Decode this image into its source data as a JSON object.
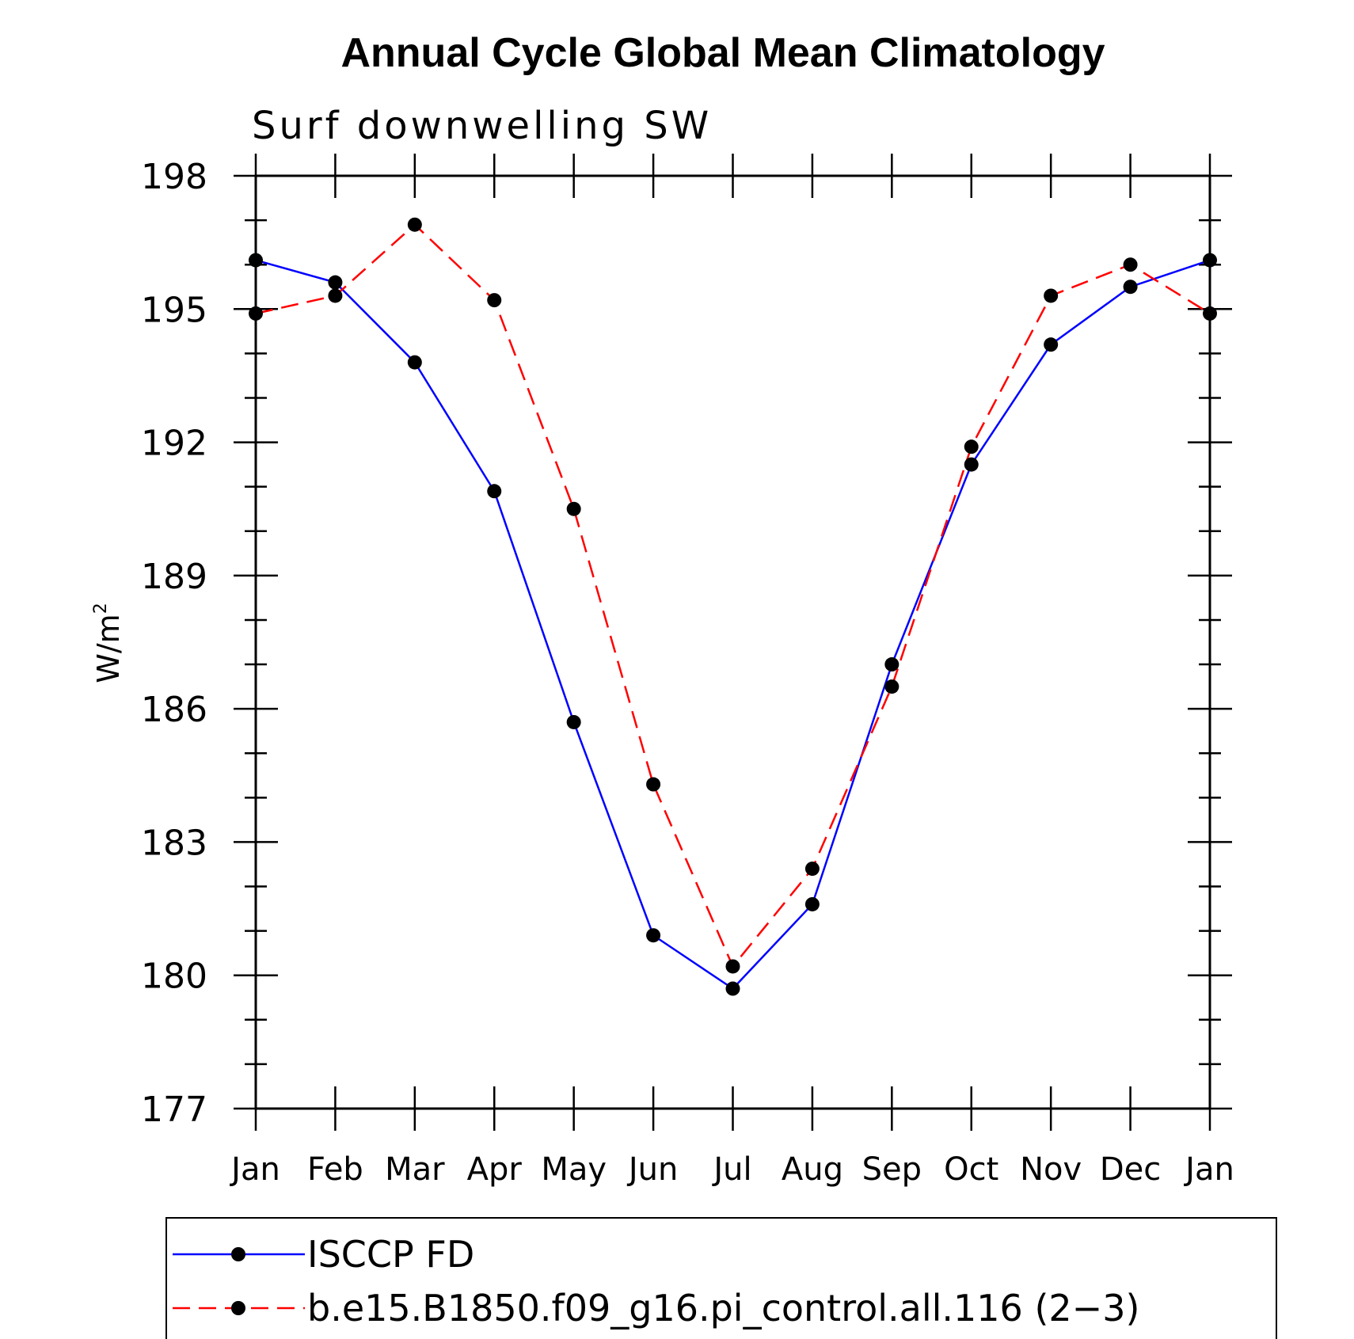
{
  "chart_data": {
    "type": "line",
    "title": "Annual Cycle Global Mean Climatology",
    "subtitle": "Surf downwelling SW",
    "ylabel": "W/m",
    "ylabel_superscript": "2",
    "xlabel": "",
    "categories": [
      "Jan",
      "Feb",
      "Mar",
      "Apr",
      "May",
      "Jun",
      "Jul",
      "Aug",
      "Sep",
      "Oct",
      "Nov",
      "Dec",
      "Jan"
    ],
    "ylim": [
      177,
      198
    ],
    "yticks": [
      177,
      180,
      183,
      186,
      189,
      192,
      195,
      198
    ],
    "y_minor_step": 1,
    "grid": false,
    "legend_position": "bottom",
    "series": [
      {
        "name": "ISCCP FD",
        "color": "#0000ff",
        "dash": "solid",
        "marker": "filled-circle",
        "values": [
          196.1,
          195.6,
          193.8,
          190.9,
          185.7,
          180.9,
          179.7,
          181.6,
          187.0,
          191.5,
          194.2,
          195.5,
          196.1
        ]
      },
      {
        "name": "b.e15.B1850.f09_g16.pi_control.all.116 (2−3)",
        "color": "#ff0000",
        "dash": "dashed",
        "marker": "filled-circle",
        "values": [
          194.9,
          195.3,
          196.9,
          195.2,
          190.5,
          184.3,
          180.2,
          182.4,
          186.5,
          191.9,
          195.3,
          196.0,
          194.9
        ]
      }
    ]
  }
}
